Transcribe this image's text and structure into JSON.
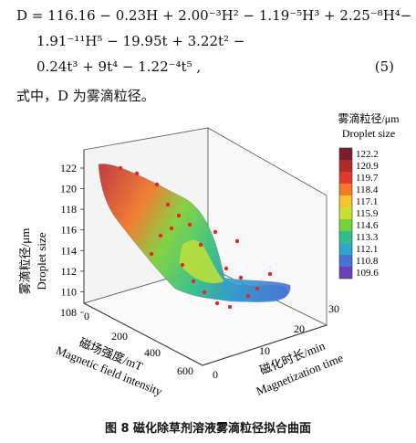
{
  "equation": {
    "line1_text": "D = 116.16 − 0.23H + 2.00⁻³H² − 1.19⁻⁵H³ + 2.25⁻⁸H⁴−",
    "line2_text": "1.91⁻¹¹H⁵ − 19.95t + 3.22t² −",
    "line3_text": "0.24t³ + 9t⁴ − 1.22⁻⁴t⁵ ,",
    "number": "(5)"
  },
  "description": "式中，D 为雾滴粒径。",
  "caption": "图 8   磁化除草剂溶液雾滴粒径拟合曲面",
  "chart_data": {
    "type": "surface3d",
    "z_label_cn": "雾滴粒径/μm",
    "z_label_en": "Droplet size",
    "x_label_cn": "磁场强度/mT",
    "x_label_en": "Magnetic field intensity",
    "y_label_cn": "磁化时长/min",
    "y_label_en": "Magnetization time",
    "x_ticks": [
      "0",
      "200",
      "400",
      "600"
    ],
    "y_ticks": [
      "0",
      "10",
      "20",
      "30"
    ],
    "z_ticks": [
      "108",
      "110",
      "112",
      "114",
      "116",
      "118",
      "120",
      "122"
    ],
    "colorbar_title_cn": "雾滴粒径/μm",
    "colorbar_title_en": "Droplet size",
    "colorbar_levels": [
      "122.2",
      "120.9",
      "119.7",
      "118.4",
      "117.1",
      "115.9",
      "114.6",
      "113.3",
      "112.1",
      "110.8",
      "109.6"
    ],
    "colorbar_colors": [
      "#7a1f2b",
      "#b02a2a",
      "#e03a2a",
      "#f07a2a",
      "#f5c232",
      "#c9e035",
      "#72d23c",
      "#2fbf8a",
      "#2fa7c9",
      "#4a6fd6",
      "#6a3fb8"
    ],
    "zlim": [
      108,
      122
    ]
  }
}
